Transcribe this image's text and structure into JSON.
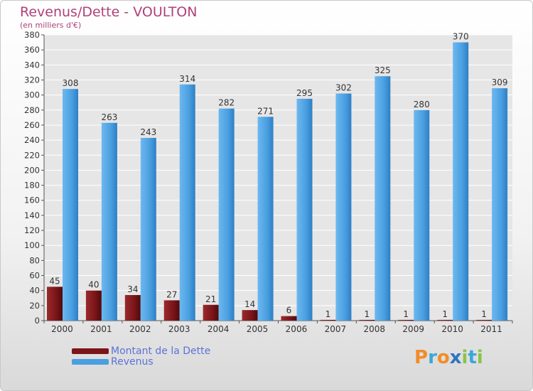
{
  "colors": {
    "title": "#b0407a",
    "dette": "#7a1518",
    "revenus": "#4a9fe0",
    "axis": "#555555",
    "grid": "#ffffff",
    "plot_bg": "#e6e6e6",
    "legend_text": "#5a73d8"
  },
  "logo": {
    "text": "Proxiti",
    "letter_colors": [
      "#f28c28",
      "#3aa7d9",
      "#f28c28",
      "#2f74c0",
      "#8bc34a",
      "#3aa7d9",
      "#8bc34a"
    ]
  },
  "chart_data": {
    "type": "bar",
    "title": "Revenus/Dette - VOULTON",
    "subtitle": "(en milliers d'€)",
    "xlabel": "",
    "ylabel": "",
    "ylim": [
      0,
      380
    ],
    "ytick_step": 20,
    "grid": true,
    "legend_position": "bottom-left",
    "categories": [
      "2000",
      "2001",
      "2002",
      "2003",
      "2004",
      "2005",
      "2006",
      "2007",
      "2008",
      "2009",
      "2010",
      "2011"
    ],
    "series": [
      {
        "name": "Montant de la Dette",
        "color": "#7a1518",
        "values": [
          45,
          40,
          34,
          27,
          21,
          14,
          6,
          1,
          1,
          1,
          1,
          1
        ]
      },
      {
        "name": "Revenus",
        "color": "#4a9fe0",
        "values": [
          308,
          263,
          243,
          314,
          282,
          271,
          295,
          302,
          325,
          280,
          370,
          309
        ]
      }
    ]
  }
}
